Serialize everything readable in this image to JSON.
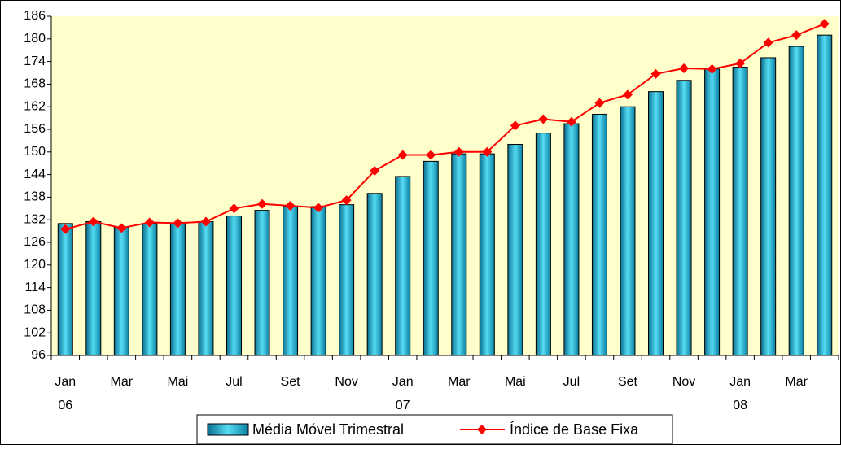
{
  "chart_data": {
    "type": "bar_line",
    "categories": [
      "Jan",
      null,
      "Mar",
      null,
      "Mai",
      null,
      "Jul",
      null,
      "Set",
      null,
      "Nov",
      null,
      "Jan",
      null,
      "Mar",
      null,
      "Mai",
      null,
      "Jul",
      null,
      "Set",
      null,
      "Nov",
      null,
      "Jan",
      null,
      "Mar",
      null
    ],
    "category_groups": [
      "06",
      null,
      null,
      null,
      null,
      null,
      null,
      null,
      null,
      null,
      null,
      null,
      "07",
      null,
      null,
      null,
      null,
      null,
      null,
      null,
      null,
      null,
      null,
      null,
      "08",
      null,
      null,
      null
    ],
    "series": [
      {
        "name": "Média Móvel Trimestral",
        "type": "bar",
        "color": "#33bbdd",
        "values": [
          131,
          131.5,
          130,
          131,
          131,
          131.5,
          133,
          134.5,
          135.5,
          135.5,
          136,
          139,
          143.5,
          147.5,
          149.5,
          149.5,
          152,
          155,
          157.5,
          160,
          162,
          166,
          169,
          172,
          172.5,
          175,
          178,
          181
        ]
      },
      {
        "name": "Índice de Base Fixa",
        "type": "line",
        "color": "#ff0000",
        "values": [
          129.5,
          131.5,
          129.8,
          131.3,
          131.1,
          131.5,
          135,
          136.2,
          135.7,
          135.2,
          137.2,
          145,
          149.2,
          149.2,
          150,
          150,
          157,
          158.7,
          158,
          163,
          165.2,
          170.7,
          172.2,
          172,
          173.5,
          179,
          181,
          184
        ]
      }
    ],
    "ylim": [
      96,
      186
    ],
    "yticks": [
      96,
      102,
      108,
      114,
      120,
      126,
      132,
      138,
      144,
      150,
      156,
      162,
      168,
      174,
      180,
      186
    ],
    "legend": "bottom"
  }
}
